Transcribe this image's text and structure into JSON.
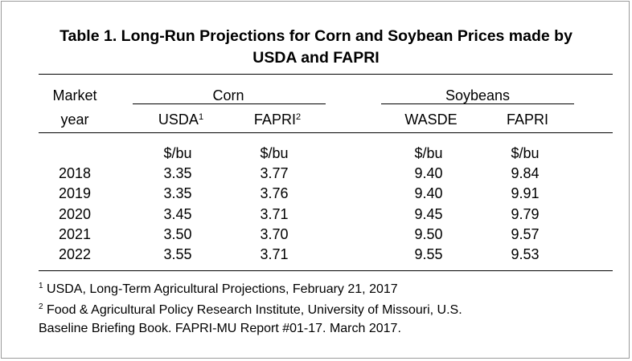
{
  "title_line1": "Table 1.  Long-Run Projections for Corn and Soybean Prices made by",
  "title_line2": "USDA and FAPRI",
  "header": {
    "market_line1": "Market",
    "market_line2": "year",
    "group_corn": "Corn",
    "group_soybeans": "Soybeans",
    "corn_col1": "USDA",
    "corn_col1_sup": "1",
    "corn_col2": "FAPRI",
    "corn_col2_sup": "2",
    "soy_col1": "WASDE",
    "soy_col2": "FAPRI"
  },
  "units": [
    "$/bu",
    "$/bu",
    "$/bu",
    "$/bu"
  ],
  "rows": [
    {
      "year": "2018",
      "values": [
        "3.35",
        "3.77",
        "9.40",
        "9.84"
      ]
    },
    {
      "year": "2019",
      "values": [
        "3.35",
        "3.76",
        "9.40",
        "9.91"
      ]
    },
    {
      "year": "2020",
      "values": [
        "3.45",
        "3.71",
        "9.45",
        "9.79"
      ]
    },
    {
      "year": "2021",
      "values": [
        "3.50",
        "3.70",
        "9.50",
        "9.57"
      ]
    },
    {
      "year": "2022",
      "values": [
        "3.55",
        "3.71",
        "9.55",
        "9.53"
      ]
    }
  ],
  "footnotes": {
    "fn1_mark": "1",
    "fn1_text": " USDA, Long-Term Agricultural Projections, February 21, 2017",
    "fn2_mark": "2",
    "fn2_text": " Food & Agricultural Policy Research Institute, University of Missouri, U.S.",
    "fn2_text_cont": "Baseline Briefing Book. FAPRI-MU Report #01-17. March 2017."
  }
}
